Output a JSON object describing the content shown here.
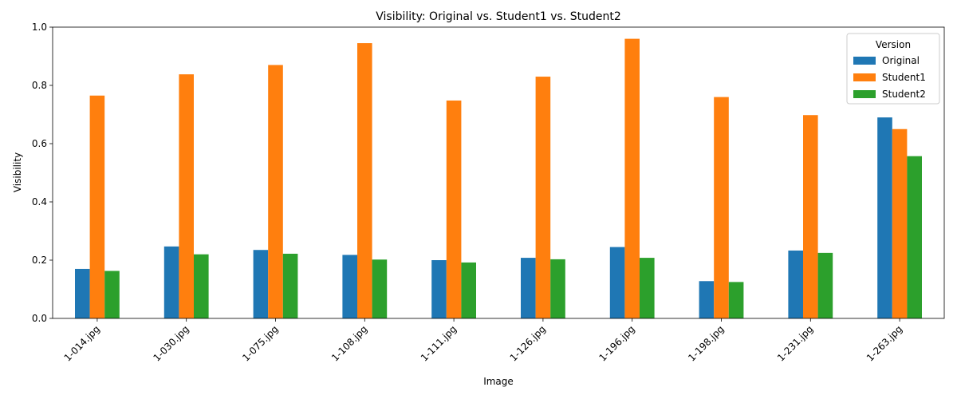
{
  "chart_data": {
    "type": "bar",
    "title": "Visibility: Original vs. Student1 vs. Student2",
    "xlabel": "Image",
    "ylabel": "Visibility",
    "ylim": [
      0,
      1.0
    ],
    "yticks": [
      "0.0",
      "0.2",
      "0.4",
      "0.6",
      "0.8",
      "1.0"
    ],
    "categories": [
      "1-014.jpg",
      "1-030.jpg",
      "1-075.jpg",
      "1-108.jpg",
      "1-111.jpg",
      "1-126.jpg",
      "1-196.jpg",
      "1-198.jpg",
      "1-231.jpg",
      "1-263.jpg"
    ],
    "legend": {
      "title": "Version",
      "position": "top-right"
    },
    "grid": false,
    "series": [
      {
        "name": "Original",
        "color": "#1f77b4",
        "values": [
          0.17,
          0.247,
          0.235,
          0.218,
          0.2,
          0.208,
          0.245,
          0.128,
          0.233,
          0.69
        ]
      },
      {
        "name": "Student1",
        "color": "#ff7f0e",
        "values": [
          0.765,
          0.838,
          0.87,
          0.945,
          0.748,
          0.83,
          0.96,
          0.76,
          0.698,
          0.65
        ]
      },
      {
        "name": "Student2",
        "color": "#2ca02c",
        "values": [
          0.163,
          0.22,
          0.222,
          0.202,
          0.192,
          0.203,
          0.208,
          0.125,
          0.225,
          0.557
        ]
      }
    ]
  }
}
